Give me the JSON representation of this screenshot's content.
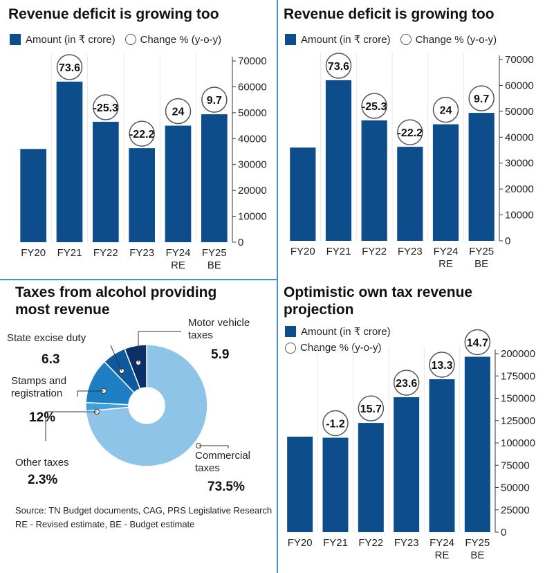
{
  "panels": {
    "top_left": {
      "title": "Revenue deficit is growing too",
      "legend_amount": "Amount (in ₹ crore)",
      "legend_change": "Change % (y-o-y)"
    },
    "top_right": {
      "title": "Revenue deficit is growing too",
      "legend_amount": "Amount (in ₹ crore)",
      "legend_change": "Change % (y-o-y)"
    },
    "bottom_left": {
      "title": "Taxes from alcohol providing most revenue",
      "source": "Source: TN Budget documents, CAG, PRS Legislative Research",
      "note": "RE - Revised estimate, BE - Budget estimate"
    },
    "bottom_right": {
      "title": "Optimistic own tax revenue projection",
      "legend_amount": "Amount (in ₹ crore)",
      "legend_change": "Change % (y-o-y)"
    }
  },
  "chart_data": [
    {
      "type": "bar",
      "title": "Revenue deficit is growing too",
      "categories": [
        "FY20",
        "FY21",
        "FY22",
        "FY23",
        "FY24 RE",
        "FY25 BE"
      ],
      "series": [
        {
          "name": "Amount (in ₹ crore)",
          "values": [
            36000,
            62000,
            46500,
            36300,
            45000,
            49400
          ]
        },
        {
          "name": "Change % (y-o-y)",
          "values": [
            null,
            73.6,
            -25.3,
            -22.2,
            24,
            9.7
          ]
        }
      ],
      "change_labels": [
        "",
        "73.6",
        "-25.3",
        "-22.2",
        "24",
        "9.7"
      ],
      "ylim": [
        0,
        70000
      ],
      "yticks": [
        "0",
        "10000",
        "20000",
        "30000",
        "40000",
        "50000",
        "60000",
        "70000"
      ],
      "axis_side": "right",
      "color": "#0d4d8c"
    },
    {
      "type": "bar",
      "title": "Revenue deficit is growing too",
      "categories": [
        "FY20",
        "FY21",
        "FY22",
        "FY23",
        "FY24 RE",
        "FY25 BE"
      ],
      "series": [
        {
          "name": "Amount (in ₹ crore)",
          "values": [
            36000,
            62000,
            46500,
            36300,
            45000,
            49400
          ]
        },
        {
          "name": "Change % (y-o-y)",
          "values": [
            null,
            73.6,
            -25.3,
            -22.2,
            24,
            9.7
          ]
        }
      ],
      "change_labels": [
        "",
        "73.6",
        "-25.3",
        "-22.2",
        "24",
        "9.7"
      ],
      "ylim": [
        0,
        70000
      ],
      "yticks": [
        "0",
        "10000",
        "20000",
        "30000",
        "40000",
        "50000",
        "60000",
        "70000"
      ],
      "axis_side": "right",
      "color": "#0d4d8c"
    },
    {
      "type": "pie",
      "title": "Taxes from alcohol providing most revenue",
      "slices": [
        {
          "label": "Commercial taxes",
          "value": 73.5,
          "display": "73.5%",
          "color": "#8ec4e8"
        },
        {
          "label": "Other taxes",
          "value": 2.3,
          "display": "2.3%",
          "color": "#3fa0dc"
        },
        {
          "label": "Stamps and registration",
          "value": 12,
          "display": "12%",
          "color": "#1f7fc4"
        },
        {
          "label": "State excise duty",
          "value": 6.3,
          "display": "6.3",
          "color": "#0d5a9c"
        },
        {
          "label": "Motor vehicle taxes",
          "value": 5.9,
          "display": "5.9",
          "color": "#0a2f6b"
        }
      ],
      "donut": true
    },
    {
      "type": "bar",
      "title": "Optimistic own tax revenue projection",
      "categories": [
        "FY20",
        "FY21",
        "FY22",
        "FY23",
        "FY24 RE",
        "FY25 BE"
      ],
      "series": [
        {
          "name": "Amount (in ₹ crore)",
          "values": [
            107000,
            105800,
            122400,
            151200,
            171300,
            196500
          ]
        },
        {
          "name": "Change % (y-o-y)",
          "values": [
            null,
            -1.2,
            15.7,
            23.6,
            13.3,
            14.7
          ]
        }
      ],
      "change_labels": [
        "",
        "-1.2",
        "15.7",
        "23.6",
        "13.3",
        "14.7"
      ],
      "ylim": [
        0,
        200000
      ],
      "yticks": [
        "0",
        "25000",
        "50000",
        "75000",
        "100000",
        "125000",
        "150000",
        "175000",
        "200000"
      ],
      "axis_side": "right",
      "color": "#0d4d8c"
    }
  ]
}
